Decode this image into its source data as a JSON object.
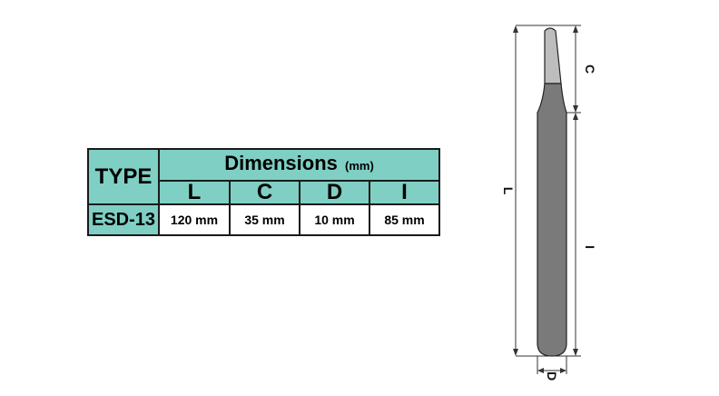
{
  "table": {
    "type_header": "TYPE",
    "dimensions_header": "Dimensions",
    "dimensions_unit": "(mm)",
    "columns": [
      "L",
      "C",
      "D",
      "I"
    ],
    "row": {
      "type": "ESD-13",
      "values": [
        "120 mm",
        "35 mm",
        "10 mm",
        "85 mm"
      ]
    },
    "header_color": "#7fcfc4"
  },
  "drawing": {
    "labels": {
      "L": "L",
      "C": "C",
      "D": "D",
      "I": "I"
    },
    "body_color": "#7a7a7a",
    "tip_color": "#bdbdbd"
  }
}
